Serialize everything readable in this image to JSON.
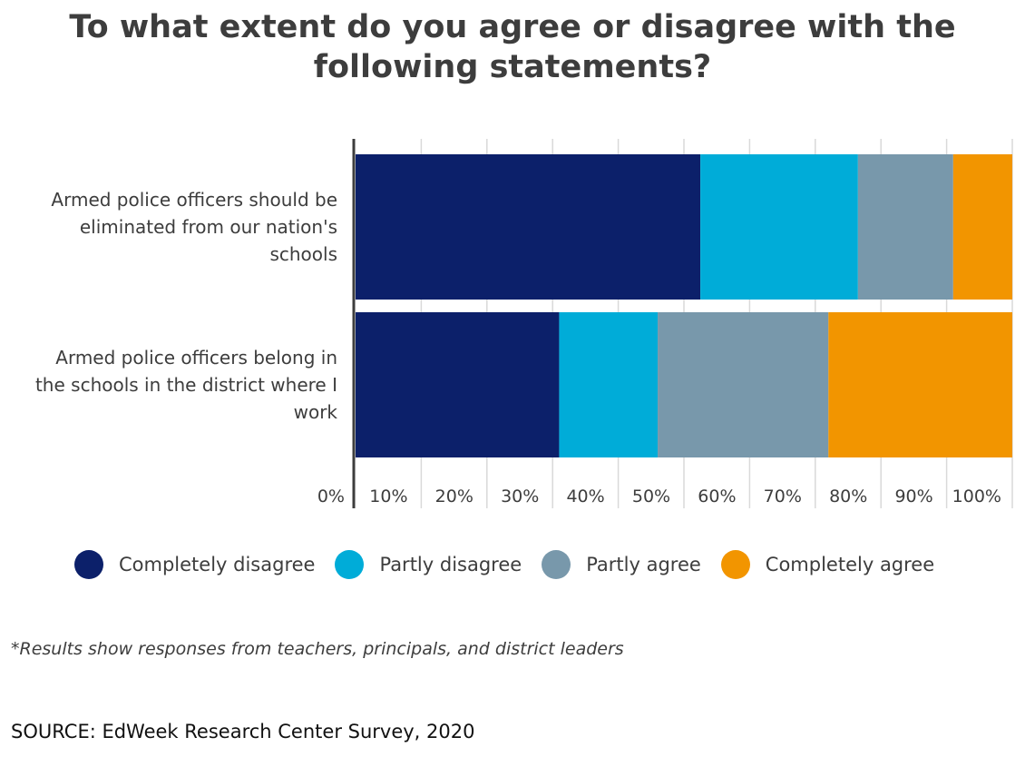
{
  "chart_data": {
    "type": "bar",
    "orientation": "horizontal",
    "stacked": true,
    "title": "To what extent do you agree or disagree with the following statements?",
    "categories": [
      "Armed police officers should be eliminated from our nation's schools",
      "Armed police officers belong in the schools in the district where I work"
    ],
    "series": [
      {
        "name": "Completely disagree",
        "color": "#0c206a",
        "values": [
          52.5,
          31
        ]
      },
      {
        "name": "Partly disagree",
        "color": "#00acd8",
        "values": [
          24,
          15
        ]
      },
      {
        "name": "Partly agree",
        "color": "#7898ab",
        "values": [
          14.5,
          26
        ]
      },
      {
        "name": "Completely agree",
        "color": "#f29500",
        "values": [
          9,
          28
        ]
      }
    ],
    "xlim": [
      0,
      100
    ],
    "x_ticks": [
      "0%",
      "10%",
      "20%",
      "30%",
      "40%",
      "50%",
      "60%",
      "70%",
      "80%",
      "90%",
      "100%"
    ],
    "grid": true,
    "legend_position": "bottom"
  },
  "footnote": "*Results show responses from teachers, principals, and district leaders",
  "source": "SOURCE: EdWeek Research Center Survey, 2020"
}
